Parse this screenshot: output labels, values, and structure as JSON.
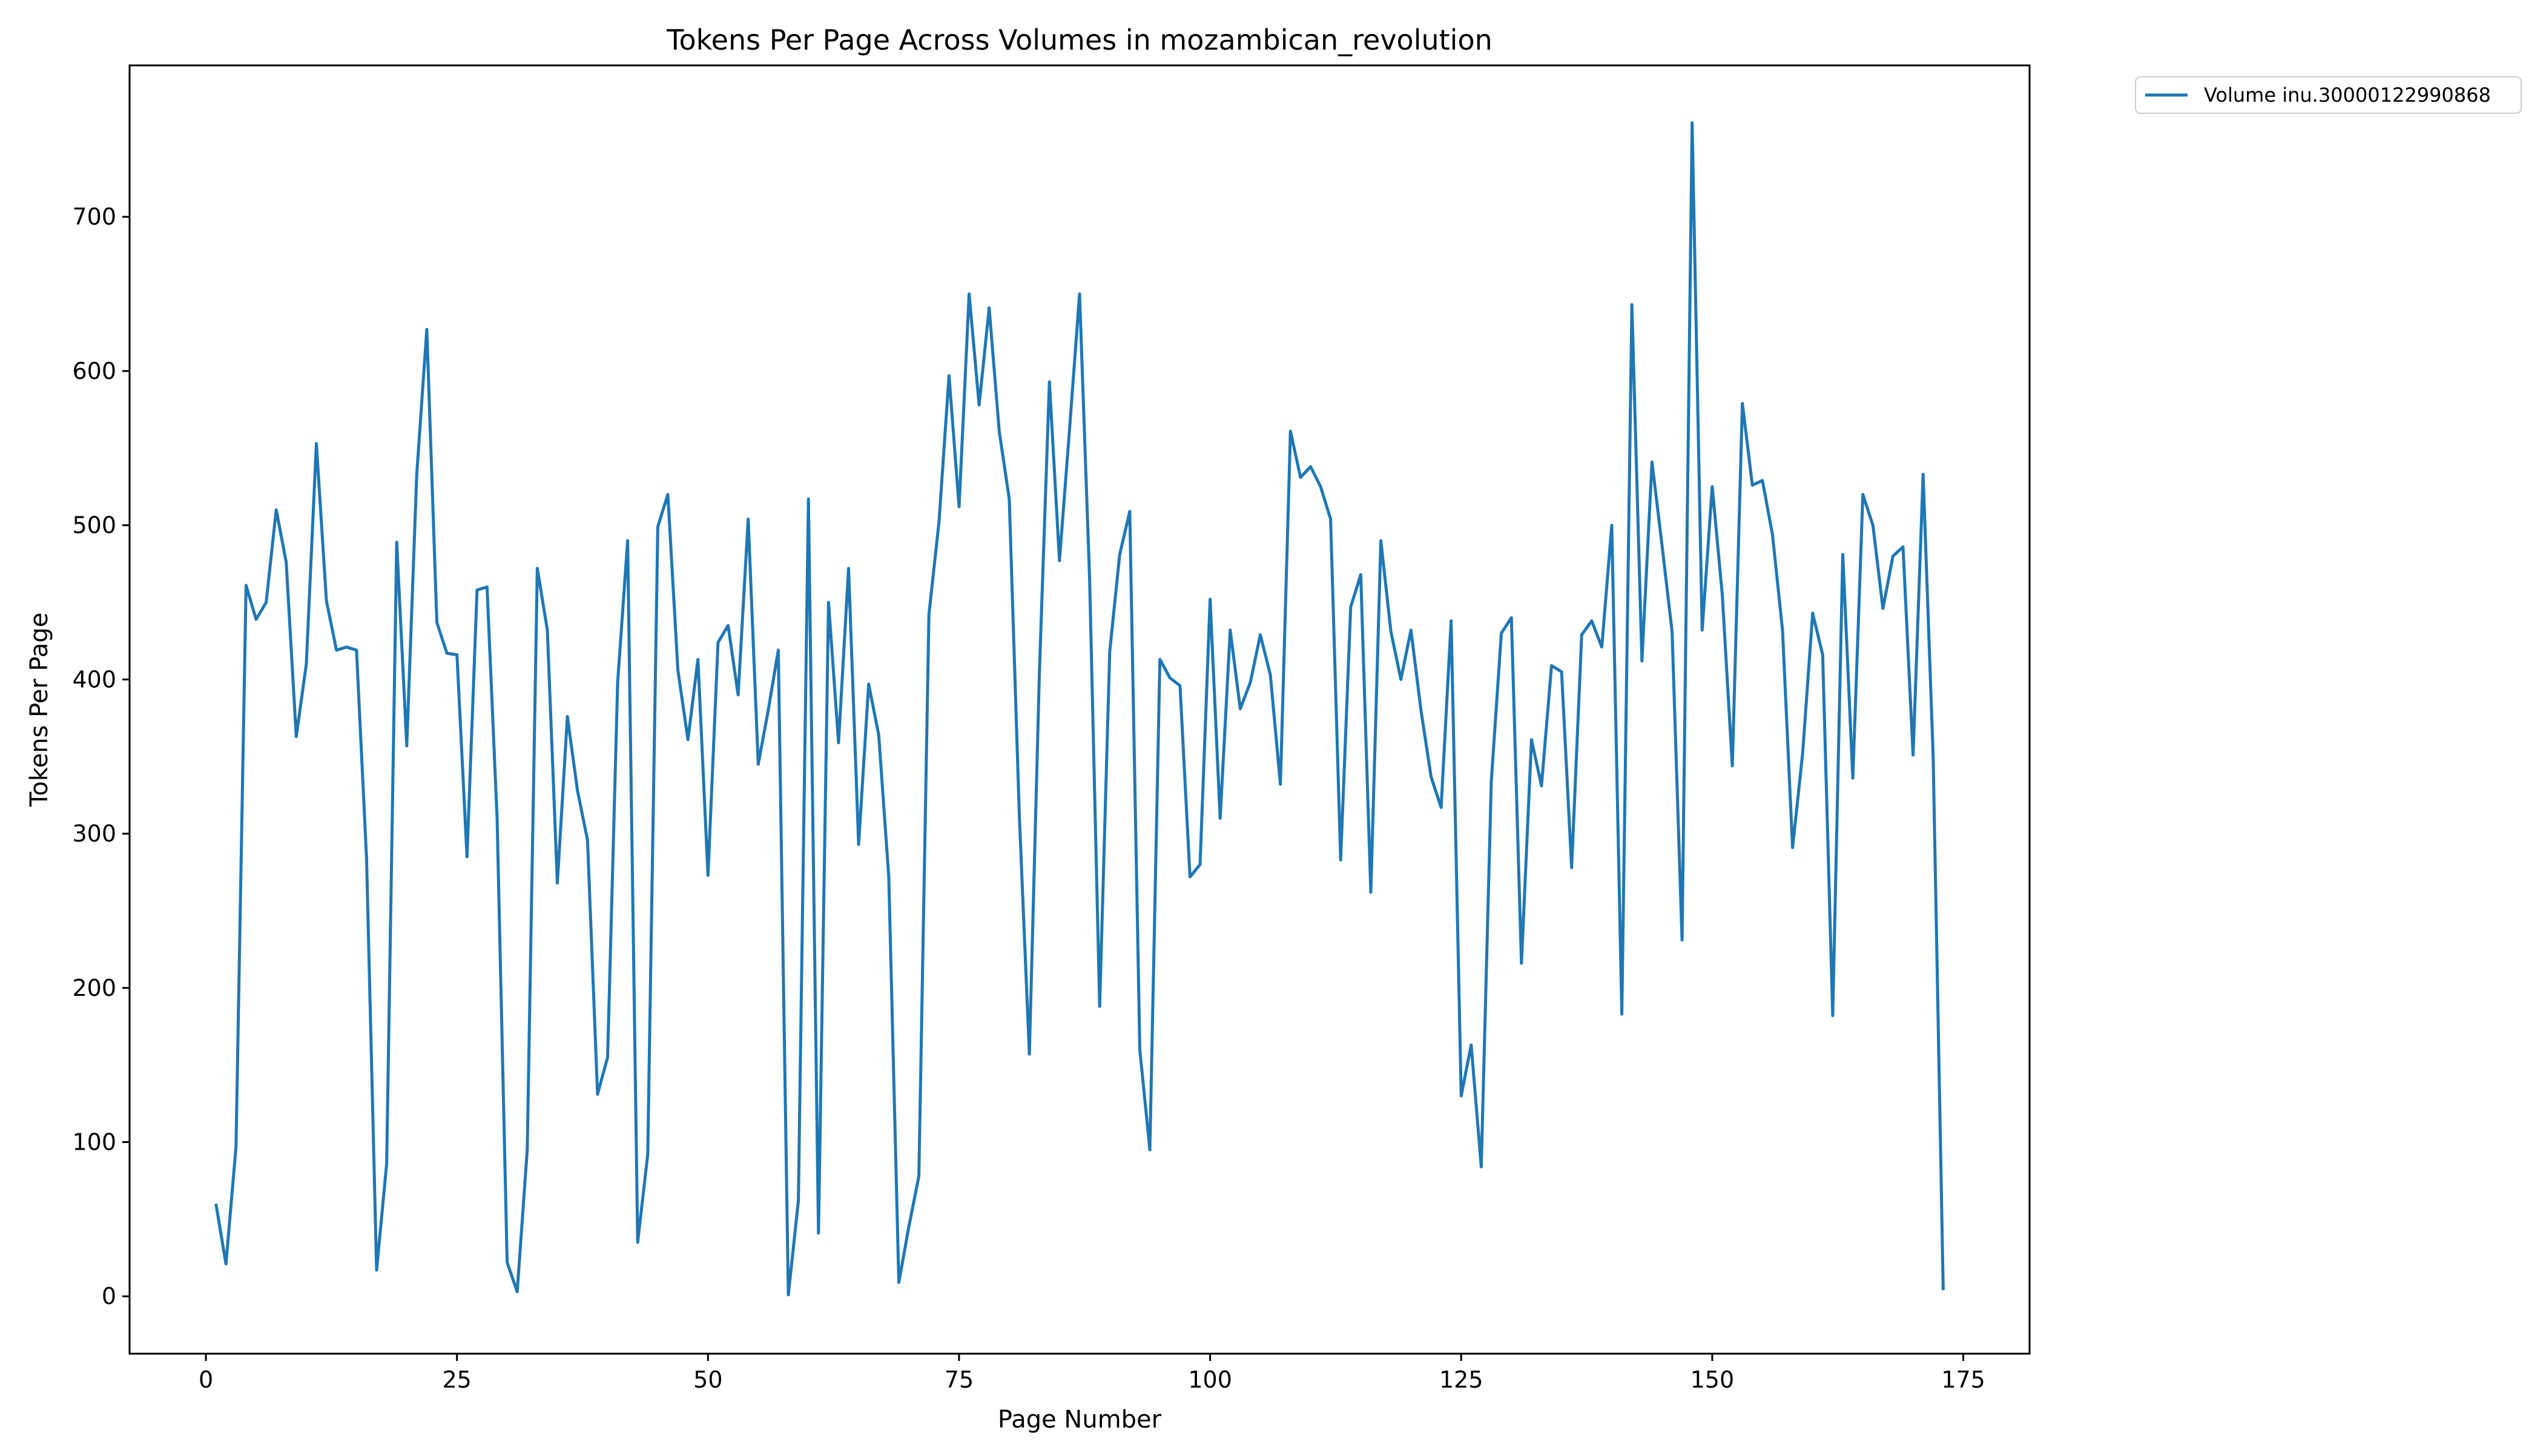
{
  "chart_data": {
    "type": "line",
    "title": "Tokens Per Page Across Volumes in mozambican_revolution",
    "xlabel": "Page Number",
    "ylabel": "Tokens Per Page",
    "xlim": [
      -7.6,
      181.6
    ],
    "ylim": [
      -37.2,
      798.2
    ],
    "xticks": [
      0,
      25,
      50,
      75,
      100,
      125,
      150,
      175
    ],
    "yticks": [
      0,
      100,
      200,
      300,
      400,
      500,
      600,
      700
    ],
    "grid": false,
    "legend_placement": "outside-top-right",
    "series": [
      {
        "name": "Volume inu.30000122990868",
        "color": "#1f77b4",
        "x": [
          1,
          2,
          3,
          4,
          5,
          6,
          7,
          8,
          9,
          10,
          11,
          12,
          13,
          14,
          15,
          16,
          17,
          18,
          19,
          20,
          21,
          22,
          23,
          24,
          25,
          26,
          27,
          28,
          29,
          30,
          31,
          32,
          33,
          34,
          35,
          36,
          37,
          38,
          39,
          40,
          41,
          42,
          43,
          44,
          45,
          46,
          47,
          48,
          49,
          50,
          51,
          52,
          53,
          54,
          55,
          56,
          57,
          58,
          59,
          60,
          61,
          62,
          63,
          64,
          65,
          66,
          67,
          68,
          69,
          70,
          71,
          72,
          73,
          74,
          75,
          76,
          77,
          78,
          79,
          80,
          81,
          82,
          83,
          84,
          85,
          86,
          87,
          88,
          89,
          90,
          91,
          92,
          93,
          94,
          95,
          96,
          97,
          98,
          99,
          100,
          101,
          102,
          103,
          104,
          105,
          106,
          107,
          108,
          109,
          110,
          111,
          112,
          113,
          114,
          115,
          116,
          117,
          118,
          119,
          120,
          121,
          122,
          123,
          124,
          125,
          126,
          127,
          128,
          129,
          130,
          131,
          132,
          133,
          134,
          135,
          136,
          137,
          138,
          139,
          140,
          141,
          142,
          143,
          144,
          145,
          146,
          147,
          148,
          149,
          150,
          151,
          152,
          153,
          154,
          155,
          156,
          157,
          158,
          159,
          160,
          161,
          162,
          163,
          164,
          165,
          166,
          167,
          168,
          169,
          170,
          171,
          172,
          173
        ],
        "y": [
          60,
          21,
          97,
          461,
          439,
          450,
          510,
          476,
          363,
          410,
          553,
          451,
          419,
          421,
          419,
          284,
          17,
          86,
          489,
          357,
          533,
          627,
          437,
          417,
          416,
          285,
          458,
          460,
          310,
          22,
          3,
          95,
          472,
          432,
          268,
          376,
          328,
          296,
          131,
          155,
          398,
          490,
          35,
          92,
          499,
          520,
          406,
          361,
          413,
          273,
          424,
          435,
          390,
          504,
          345,
          380,
          419,
          1,
          62,
          517,
          41,
          450,
          359,
          472,
          293,
          397,
          364,
          272,
          9,
          45,
          78,
          442,
          502,
          597,
          512,
          650,
          578,
          641,
          561,
          517,
          312,
          157,
          405,
          593,
          477,
          562,
          650,
          465,
          188,
          418,
          481,
          509,
          160,
          95,
          413,
          401,
          396,
          272,
          280,
          452,
          310,
          432,
          381,
          398,
          429,
          403,
          332,
          561,
          531,
          538,
          525,
          504,
          283,
          447,
          468,
          262,
          490,
          431,
          400,
          432,
          380,
          337,
          317,
          438,
          130,
          163,
          84,
          334,
          430,
          440,
          216,
          361,
          331,
          409,
          405,
          278,
          429,
          438,
          421,
          500,
          183,
          643,
          412,
          541,
          487,
          431,
          231,
          761,
          432,
          525,
          455,
          344,
          579,
          526,
          529,
          494,
          432,
          291,
          352,
          443,
          416,
          182,
          481,
          336,
          520,
          500,
          446,
          480,
          486,
          351,
          533,
          350,
          4
        ]
      }
    ]
  }
}
